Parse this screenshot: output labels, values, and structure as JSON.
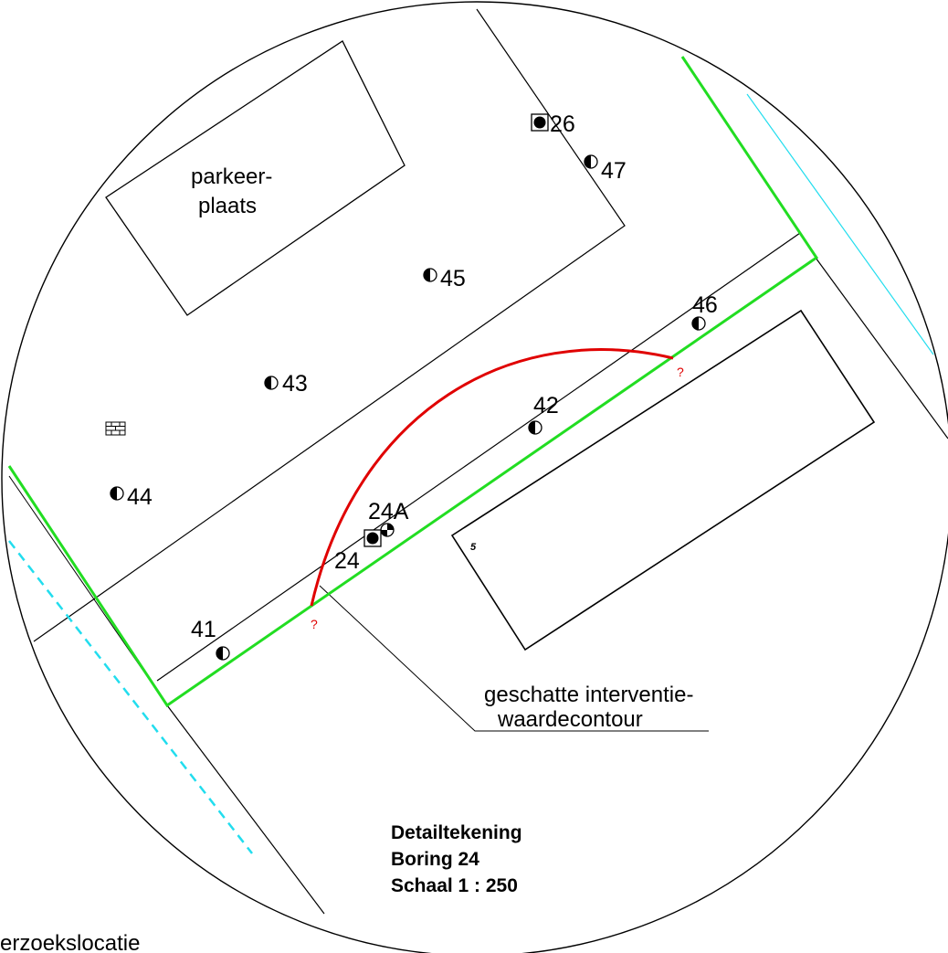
{
  "colors": {
    "lines": "#000000",
    "boundary": "#22dd22",
    "contour": "#e00000",
    "water": "#22ddee"
  },
  "area_label": {
    "line1": "parkeer-",
    "line2": "plaats"
  },
  "boreholes": {
    "b26": "26",
    "b47": "47",
    "b45": "45",
    "b46": "46",
    "b43": "43",
    "b42": "42",
    "b44": "44",
    "b24a": "24A",
    "b24": "24",
    "b41": "41"
  },
  "contour_unknown_marker": "?",
  "lot_number": "5",
  "contour_label": {
    "line1": "geschatte interventie-",
    "line2": "waardecontour"
  },
  "title_block": {
    "line1": "Detailtekening",
    "line2": "Boring 24",
    "line3": "Schaal 1 : 250"
  },
  "location_label": "erzoekslocatie",
  "icons": {
    "borehole_half": "half-filled-circle-icon",
    "borehole_full_boxed": "boxed-filled-circle-icon",
    "borehole_quarter": "quartered-circle-icon",
    "brick": "brick-icon"
  }
}
